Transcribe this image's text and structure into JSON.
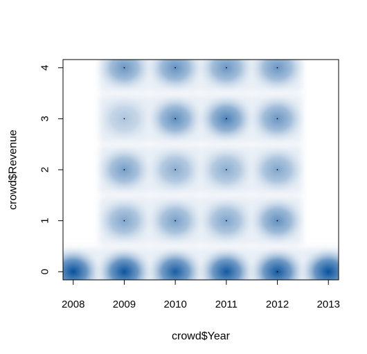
{
  "chart_data": {
    "type": "heatmap",
    "subtype": "smoothScatter",
    "title": "",
    "xlabel": "crowd$Year",
    "ylabel": "crowd$Revenue",
    "xlim": [
      2007.8,
      2013.2
    ],
    "ylim": [
      -0.16,
      4.16
    ],
    "x_ticks": [
      "2008",
      "2009",
      "2010",
      "2011",
      "2012",
      "2013"
    ],
    "y_ticks": [
      "0",
      "1",
      "2",
      "3",
      "4"
    ],
    "grid": false,
    "legend": "none",
    "colors": {
      "low": "#ffffff",
      "high": "#08519c",
      "point": "#000000",
      "axis": "#000000"
    },
    "density": [
      {
        "x": 2008,
        "y": 0,
        "intensity": 1.0
      },
      {
        "x": 2009,
        "y": 0,
        "intensity": 0.98
      },
      {
        "x": 2010,
        "y": 0,
        "intensity": 0.92
      },
      {
        "x": 2011,
        "y": 0,
        "intensity": 0.95
      },
      {
        "x": 2012,
        "y": 0,
        "intensity": 0.95
      },
      {
        "x": 2013,
        "y": 0,
        "intensity": 1.0
      },
      {
        "x": 2009,
        "y": 1,
        "intensity": 0.45
      },
      {
        "x": 2010,
        "y": 1,
        "intensity": 0.48
      },
      {
        "x": 2011,
        "y": 1,
        "intensity": 0.45
      },
      {
        "x": 2012,
        "y": 1,
        "intensity": 0.58
      },
      {
        "x": 2009,
        "y": 2,
        "intensity": 0.5
      },
      {
        "x": 2010,
        "y": 2,
        "intensity": 0.4
      },
      {
        "x": 2011,
        "y": 2,
        "intensity": 0.4
      },
      {
        "x": 2012,
        "y": 2,
        "intensity": 0.45
      },
      {
        "x": 2009,
        "y": 3,
        "intensity": 0.25
      },
      {
        "x": 2010,
        "y": 3,
        "intensity": 0.6
      },
      {
        "x": 2011,
        "y": 3,
        "intensity": 0.68
      },
      {
        "x": 2012,
        "y": 3,
        "intensity": 0.55
      },
      {
        "x": 2009,
        "y": 4,
        "intensity": 0.55
      },
      {
        "x": 2010,
        "y": 4,
        "intensity": 0.58
      },
      {
        "x": 2011,
        "y": 4,
        "intensity": 0.55
      },
      {
        "x": 2012,
        "y": 4,
        "intensity": 0.55
      }
    ],
    "points": [
      {
        "x": 2009,
        "y": 1
      },
      {
        "x": 2010,
        "y": 1
      },
      {
        "x": 2011,
        "y": 1
      },
      {
        "x": 2012,
        "y": 1
      },
      {
        "x": 2009,
        "y": 2
      },
      {
        "x": 2010,
        "y": 2
      },
      {
        "x": 2011,
        "y": 2
      },
      {
        "x": 2012,
        "y": 2
      },
      {
        "x": 2009,
        "y": 3
      },
      {
        "x": 2010,
        "y": 3
      },
      {
        "x": 2011,
        "y": 3
      },
      {
        "x": 2012,
        "y": 3
      },
      {
        "x": 2009,
        "y": 4
      },
      {
        "x": 2010,
        "y": 4
      },
      {
        "x": 2011,
        "y": 4
      },
      {
        "x": 2012,
        "y": 4
      },
      {
        "x": 2012,
        "y": 0
      }
    ]
  }
}
